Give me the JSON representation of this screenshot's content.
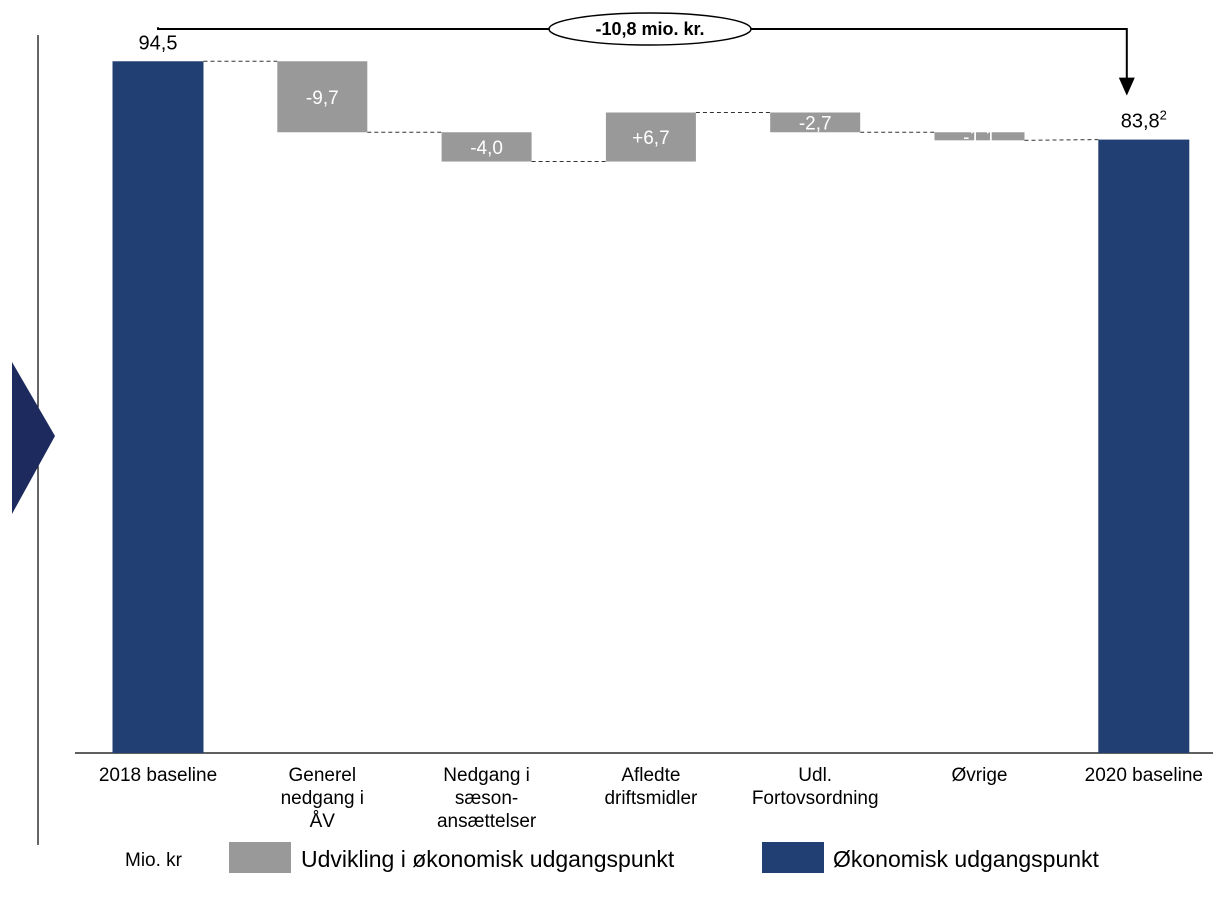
{
  "colors": {
    "baseline": "#223f73",
    "change": "#999999",
    "arrow_marker": "#1c2a5e",
    "axis": "#000000",
    "connector": "#333333"
  },
  "chart_data": {
    "type": "waterfall",
    "ylim": [
      0,
      100
    ],
    "bars": [
      {
        "category": "2018 baseline",
        "category_lines": [
          "2018 baseline"
        ],
        "kind": "total",
        "value": 94.5,
        "label": "94,5",
        "label_sup": ""
      },
      {
        "category": "Generel nedgang i ÅV",
        "category_lines": [
          "Generel",
          "nedgang i",
          "ÅV"
        ],
        "kind": "delta",
        "value": -9.7,
        "label": "-9,7"
      },
      {
        "category": "Nedgang i sæson-ansættelser",
        "category_lines": [
          "Nedgang i",
          "sæson-",
          "ansættelser"
        ],
        "kind": "delta",
        "value": -4.0,
        "label": "-4,0"
      },
      {
        "category": "Afledte driftsmidler",
        "category_lines": [
          "Afledte",
          "driftsmidler"
        ],
        "kind": "delta",
        "value": 6.7,
        "label": "+6,7"
      },
      {
        "category": "Udl. Fortovsordning",
        "category_lines": [
          "Udl.",
          "Fortovsordning"
        ],
        "kind": "delta",
        "value": -2.7,
        "label": "-2,7"
      },
      {
        "category": "Øvrige",
        "category_lines": [
          "Øvrige"
        ],
        "kind": "delta",
        "value": -1.1,
        "label": "-1,1"
      },
      {
        "category": "2020 baseline",
        "category_lines": [
          "2020 baseline"
        ],
        "kind": "total",
        "value": 83.8,
        "label": "83,8",
        "label_sup": "2"
      }
    ],
    "total_change": {
      "label": "-10,8 mio. kr.",
      "value": -10.8
    },
    "legend": [
      {
        "key": "change",
        "label": "Udvikling i økonomisk udgangspunkt"
      },
      {
        "key": "baseline",
        "label": "Økonomisk udgangspunkt"
      }
    ],
    "unit_label": "Mio. kr"
  }
}
